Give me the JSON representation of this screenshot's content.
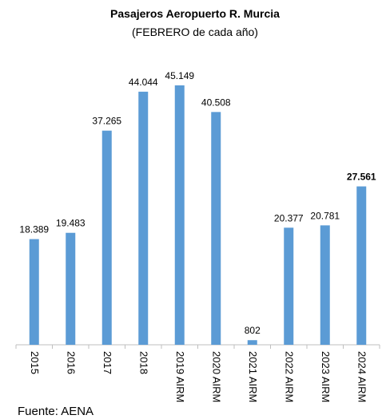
{
  "chart_data": {
    "type": "bar",
    "title": "Pasajeros Aeropuerto R. Murcia",
    "subtitle": "(FEBRERO de cada año)",
    "source": "Fuente: AENA",
    "categories": [
      "2015",
      "2016",
      "2017",
      "2018",
      "2019 AIRM",
      "2020 AIRM",
      "2021 AIRM",
      "2022 AIRM",
      "2023 AIRM",
      "2024 AIRM"
    ],
    "values": [
      18389,
      19483,
      37265,
      44044,
      45149,
      40508,
      802,
      20377,
      20781,
      27561
    ],
    "value_labels": [
      "18.389",
      "19.483",
      "37.265",
      "44.044",
      "45.149",
      "40.508",
      "802",
      "20.377",
      "20.781",
      "27.561"
    ],
    "color": "#5b9bd5",
    "ylim": [
      0,
      50000
    ]
  }
}
